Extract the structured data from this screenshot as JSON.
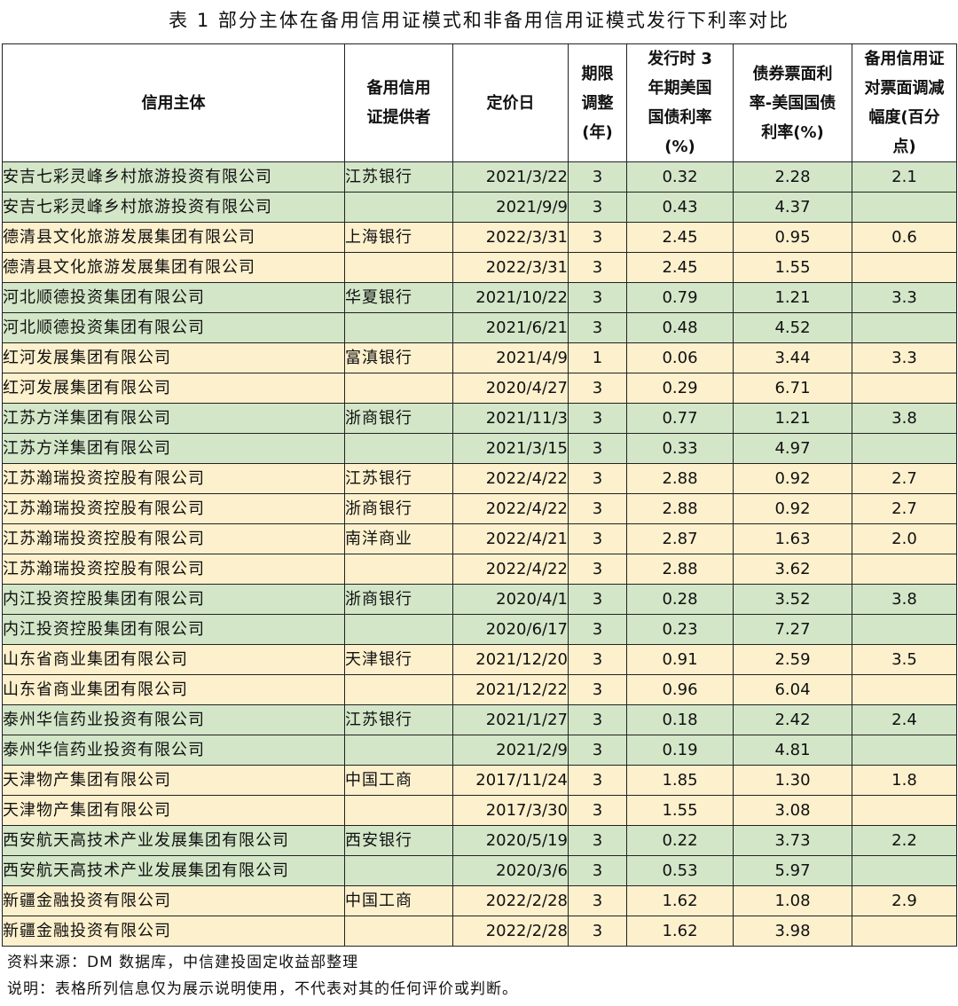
{
  "title": "表 1 部分主体在备用信用证模式和非备用信用证模式发行下利率对比",
  "headers": [
    "信用主体",
    "备用信用证提供者",
    "定价日",
    "期限调整(年)",
    "发行时 3 年期美国国债利率(%)",
    "债券票面利率-美国国债利率(%)",
    "备用信用证对票面调减幅度(百分点)"
  ],
  "rows": [
    {
      "entity": "安吉七彩灵峰乡村旅游投资有限公司",
      "bank": "江苏银行",
      "date": "2021/3/22",
      "term": "3",
      "ust": "0.32",
      "spread": "2.28",
      "reduction": "2.1",
      "band": "g"
    },
    {
      "entity": "安吉七彩灵峰乡村旅游投资有限公司",
      "bank": "",
      "date": "2021/9/9",
      "term": "3",
      "ust": "0.43",
      "spread": "4.37",
      "reduction": "",
      "band": "g"
    },
    {
      "entity": "德清县文化旅游发展集团有限公司",
      "bank": "上海银行",
      "date": "2022/3/31",
      "term": "3",
      "ust": "2.45",
      "spread": "0.95",
      "reduction": "0.6",
      "band": "y"
    },
    {
      "entity": "德清县文化旅游发展集团有限公司",
      "bank": "",
      "date": "2022/3/31",
      "term": "3",
      "ust": "2.45",
      "spread": "1.55",
      "reduction": "",
      "band": "y"
    },
    {
      "entity": "河北顺德投资集团有限公司",
      "bank": "华夏银行",
      "date": "2021/10/22",
      "term": "3",
      "ust": "0.79",
      "spread": "1.21",
      "reduction": "3.3",
      "band": "g"
    },
    {
      "entity": "河北顺德投资集团有限公司",
      "bank": "",
      "date": "2021/6/21",
      "term": "3",
      "ust": "0.48",
      "spread": "4.52",
      "reduction": "",
      "band": "g"
    },
    {
      "entity": "红河发展集团有限公司",
      "bank": "富滇银行",
      "date": "2021/4/9",
      "term": "1",
      "ust": "0.06",
      "spread": "3.44",
      "reduction": "3.3",
      "band": "y"
    },
    {
      "entity": "红河发展集团有限公司",
      "bank": "",
      "date": "2020/4/27",
      "term": "3",
      "ust": "0.29",
      "spread": "6.71",
      "reduction": "",
      "band": "y"
    },
    {
      "entity": "江苏方洋集团有限公司",
      "bank": "浙商银行",
      "date": "2021/11/3",
      "term": "3",
      "ust": "0.77",
      "spread": "1.21",
      "reduction": "3.8",
      "band": "g"
    },
    {
      "entity": "江苏方洋集团有限公司",
      "bank": "",
      "date": "2021/3/15",
      "term": "3",
      "ust": "0.33",
      "spread": "4.97",
      "reduction": "",
      "band": "g"
    },
    {
      "entity": "江苏瀚瑞投资控股有限公司",
      "bank": "江苏银行",
      "date": "2022/4/22",
      "term": "3",
      "ust": "2.88",
      "spread": "0.92",
      "reduction": "2.7",
      "band": "y"
    },
    {
      "entity": "江苏瀚瑞投资控股有限公司",
      "bank": "浙商银行",
      "date": "2022/4/22",
      "term": "3",
      "ust": "2.88",
      "spread": "0.92",
      "reduction": "2.7",
      "band": "y"
    },
    {
      "entity": "江苏瀚瑞投资控股有限公司",
      "bank": "南洋商业",
      "date": "2022/4/21",
      "term": "3",
      "ust": "2.87",
      "spread": "1.63",
      "reduction": "2.0",
      "band": "y"
    },
    {
      "entity": "江苏瀚瑞投资控股有限公司",
      "bank": "",
      "date": "2022/4/22",
      "term": "3",
      "ust": "2.88",
      "spread": "3.62",
      "reduction": "",
      "band": "y"
    },
    {
      "entity": "内江投资控股集团有限公司",
      "bank": "浙商银行",
      "date": "2020/4/1",
      "term": "3",
      "ust": "0.28",
      "spread": "3.52",
      "reduction": "3.8",
      "band": "g"
    },
    {
      "entity": "内江投资控股集团有限公司",
      "bank": "",
      "date": "2020/6/17",
      "term": "3",
      "ust": "0.23",
      "spread": "7.27",
      "reduction": "",
      "band": "g"
    },
    {
      "entity": "山东省商业集团有限公司",
      "bank": "天津银行",
      "date": "2021/12/20",
      "term": "3",
      "ust": "0.91",
      "spread": "2.59",
      "reduction": "3.5",
      "band": "y"
    },
    {
      "entity": "山东省商业集团有限公司",
      "bank": "",
      "date": "2021/12/22",
      "term": "3",
      "ust": "0.96",
      "spread": "6.04",
      "reduction": "",
      "band": "y"
    },
    {
      "entity": "泰州华信药业投资有限公司",
      "bank": "江苏银行",
      "date": "2021/1/27",
      "term": "3",
      "ust": "0.18",
      "spread": "2.42",
      "reduction": "2.4",
      "band": "g"
    },
    {
      "entity": "泰州华信药业投资有限公司",
      "bank": "",
      "date": "2021/2/9",
      "term": "3",
      "ust": "0.19",
      "spread": "4.81",
      "reduction": "",
      "band": "g"
    },
    {
      "entity": "天津物产集团有限公司",
      "bank": "中国工商",
      "date": "2017/11/24",
      "term": "3",
      "ust": "1.85",
      "spread": "1.30",
      "reduction": "1.8",
      "band": "y"
    },
    {
      "entity": "天津物产集团有限公司",
      "bank": "",
      "date": "2017/3/30",
      "term": "3",
      "ust": "1.55",
      "spread": "3.08",
      "reduction": "",
      "band": "y"
    },
    {
      "entity": "西安航天高技术产业发展集团有限公司",
      "bank": "西安银行",
      "date": "2020/5/19",
      "term": "3",
      "ust": "0.22",
      "spread": "3.73",
      "reduction": "2.2",
      "band": "g"
    },
    {
      "entity": "西安航天高技术产业发展集团有限公司",
      "bank": "",
      "date": "2020/3/6",
      "term": "3",
      "ust": "0.53",
      "spread": "5.97",
      "reduction": "",
      "band": "g"
    },
    {
      "entity": "新疆金融投资有限公司",
      "bank": "中国工商",
      "date": "2022/2/28",
      "term": "3",
      "ust": "1.62",
      "spread": "1.08",
      "reduction": "2.9",
      "band": "y"
    },
    {
      "entity": "新疆金融投资有限公司",
      "bank": "",
      "date": "2022/2/28",
      "term": "3",
      "ust": "1.62",
      "spread": "3.98",
      "reduction": "",
      "band": "y"
    }
  ],
  "notes": {
    "source": "资料来源：DM 数据库，中信建投固定收益部整理",
    "disclaimer": "说明：表格所列信息仅为展示说明使用，不代表对其的任何评价或判断。"
  },
  "colors": {
    "band_green": "#d3e6c8",
    "band_yellow": "#fdf0cd",
    "border": "#222222"
  }
}
